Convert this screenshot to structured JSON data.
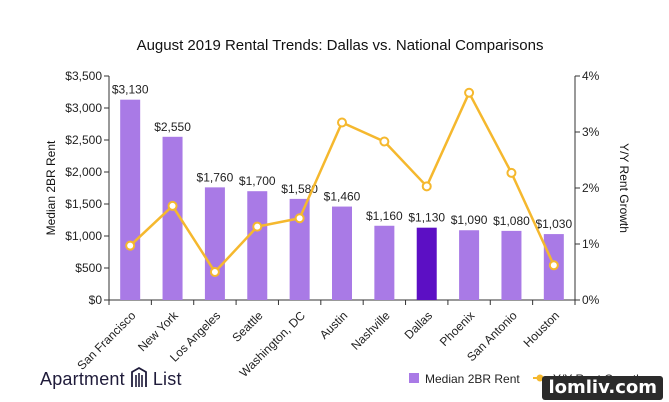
{
  "chart_data": {
    "type": "bar",
    "title": "August 2019 Rental Trends: Dallas vs. National Comparisons",
    "categories": [
      "San Francisco",
      "New York",
      "Los Angeles",
      "Seattle",
      "Washington, DC",
      "Austin",
      "Nashville",
      "Dallas",
      "Phoenix",
      "San Antonio",
      "Houston"
    ],
    "ylabel": "Median 2BR Rent",
    "y2label": "Y/Y Rent Growth",
    "ylim": [
      0,
      3500
    ],
    "y2lim": [
      0,
      4
    ],
    "yticks": [
      "$0",
      "$500",
      "$1,000",
      "$1,500",
      "$2,000",
      "$2,500",
      "$3,000",
      "$3,500"
    ],
    "y2ticks": [
      "0%",
      "1%",
      "2%",
      "3%",
      "4%"
    ],
    "series": [
      {
        "name": "Median 2BR Rent",
        "kind": "bar",
        "values": [
          3130,
          2550,
          1760,
          1700,
          1580,
          1460,
          1160,
          1130,
          1090,
          1080,
          1030
        ],
        "labels": [
          "$3,130",
          "$2,550",
          "$1,760",
          "$1,700",
          "$1,580",
          "$1,460",
          "$1,160",
          "$1,130",
          "$1,090",
          "$1,080",
          "$1,030"
        ],
        "color": "#a97ae6",
        "highlight_index": 7,
        "highlight_color": "#5c0fc4"
      },
      {
        "name": "Y/Y Rent Growth",
        "kind": "line",
        "axis": "right",
        "values": [
          0.97,
          1.68,
          0.5,
          1.31,
          1.46,
          3.17,
          2.83,
          2.03,
          3.7,
          2.27,
          0.62
        ],
        "color": "#f5b82e"
      }
    ],
    "legend_position": "bottom-right",
    "grid": false
  },
  "branding": {
    "logo_word1": "Apartment",
    "logo_word2": "List",
    "logo_mark": "building-icon",
    "watermark": "lomliv.com"
  }
}
